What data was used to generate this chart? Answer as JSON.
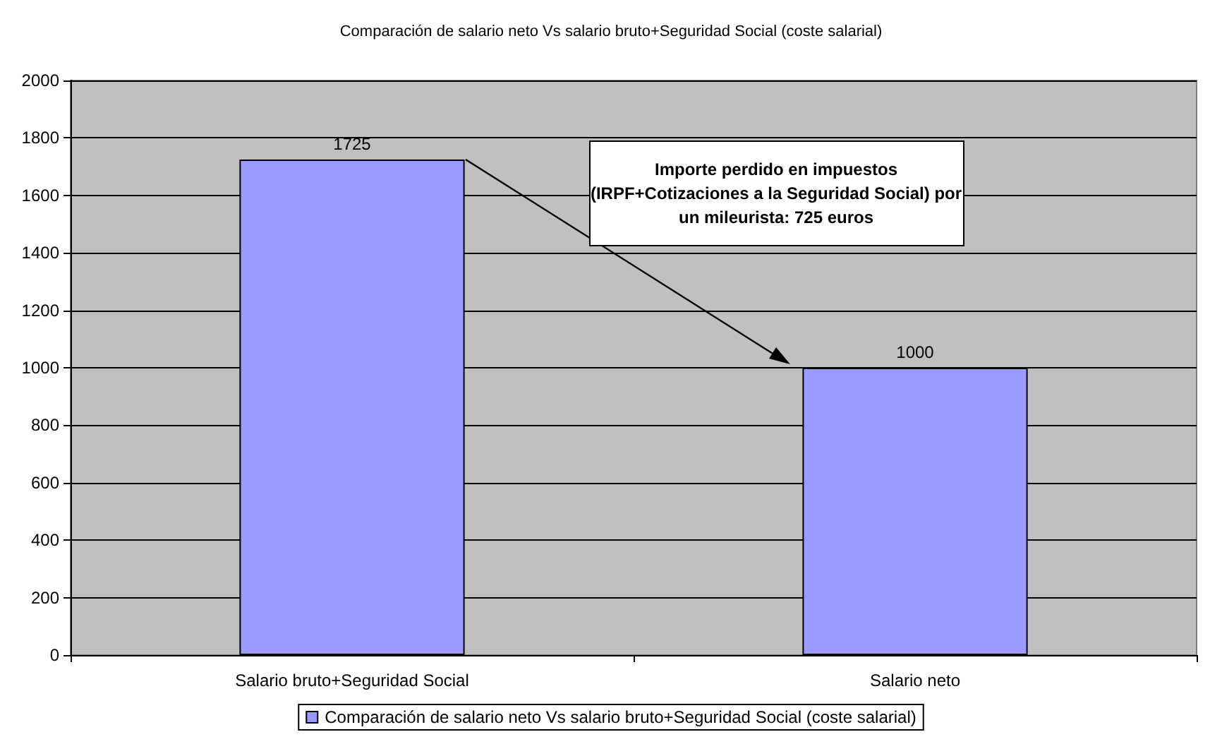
{
  "chart_data": {
    "type": "bar",
    "title": "Comparación de salario neto Vs salario bruto+Seguridad Social (coste salarial)",
    "categories": [
      "Salario bruto+Seguridad Social",
      "Salario neto"
    ],
    "series": [
      {
        "name": "Comparación de salario neto Vs salario bruto+Seguridad Social (coste salarial)",
        "color": "#9999ff",
        "values": [
          1725,
          1000
        ]
      }
    ],
    "ylim": [
      0,
      2000
    ],
    "yticks": [
      0,
      200,
      400,
      600,
      800,
      1000,
      1200,
      1400,
      1600,
      1800,
      2000
    ],
    "grid": "y",
    "legend": "bottom",
    "data_labels": true,
    "annotations": [
      "Importe perdido en impuestos\n(IRPF+Cotizaciones a la Seguridad Social) por\nun mileurista: 725 euros"
    ]
  }
}
